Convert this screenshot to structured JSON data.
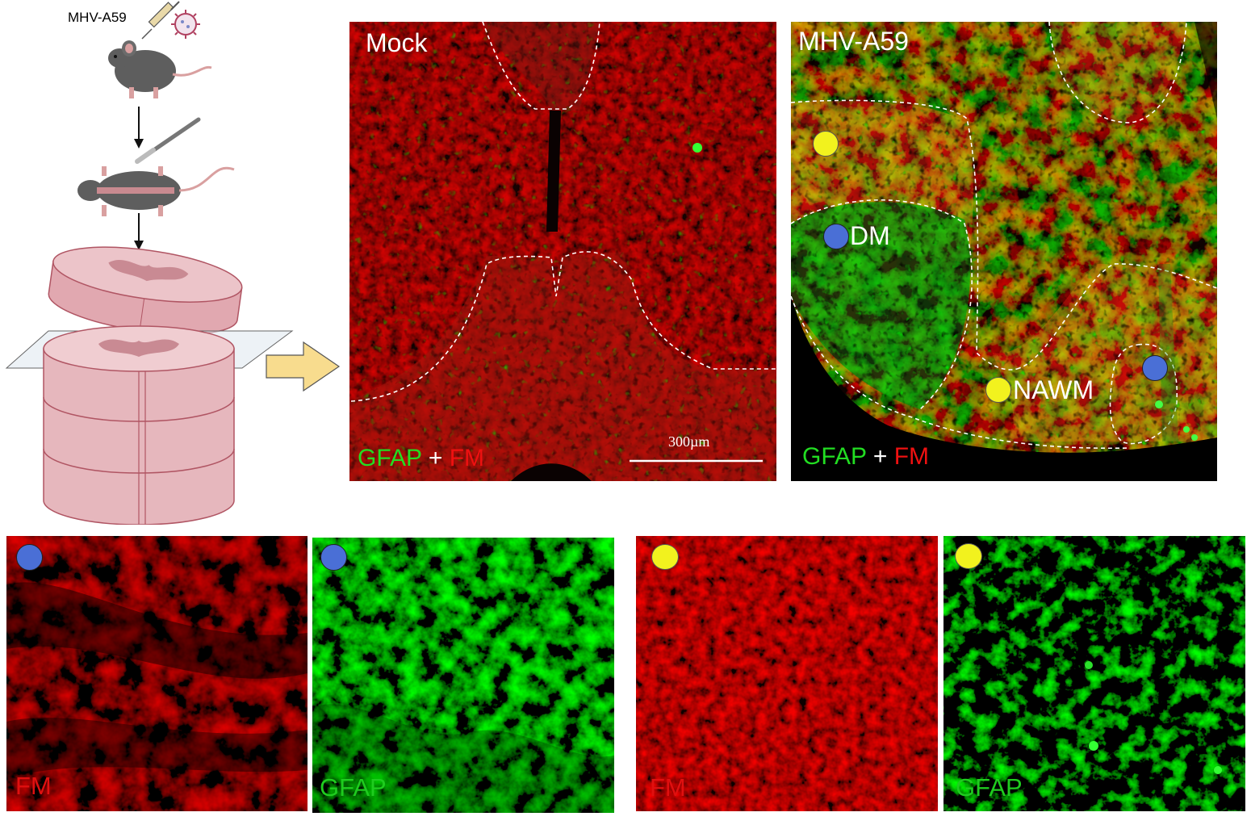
{
  "schematic": {
    "virus_label": "MHV-A59",
    "colors": {
      "tissue": "#e6b7bd",
      "tissue_edge": "#b05563",
      "arrow": "#f8dc8e",
      "mouse": "#5e5e5e"
    }
  },
  "top_panels": {
    "mock": {
      "title": "Mock",
      "scale_bar": "300µm",
      "legend": {
        "gfap": "GFAP",
        "plus": " + ",
        "fm": "FM"
      }
    },
    "infected": {
      "title": "MHV-A59",
      "regions": {
        "dm": "DM",
        "nawm": "NAWM"
      },
      "legend": {
        "gfap": "GFAP",
        "plus": " + ",
        "fm": "FM"
      }
    }
  },
  "bottom_panels": [
    {
      "marker": "blue",
      "label": "FM",
      "channel": "red"
    },
    {
      "marker": "blue",
      "label": "GFAP",
      "channel": "green"
    },
    {
      "marker": "yellow",
      "label": "FM",
      "channel": "red"
    },
    {
      "marker": "yellow",
      "label": "GFAP",
      "channel": "green"
    }
  ],
  "colors": {
    "gfap": "#22cc22",
    "fm": "#e01010",
    "marker_blue": "#4a6fd6",
    "marker_yellow": "#f2f21e"
  }
}
